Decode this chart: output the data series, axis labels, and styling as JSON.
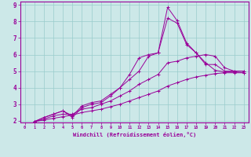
{
  "xlabel": "Windchill (Refroidissement éolien,°C)",
  "ylabel": "",
  "bg_color": "#cce8e8",
  "line_color": "#990099",
  "xlim": [
    -0.5,
    23.5
  ],
  "ylim": [
    1.9,
    9.2
  ],
  "xticks": [
    0,
    1,
    2,
    3,
    4,
    5,
    6,
    7,
    8,
    9,
    10,
    11,
    12,
    13,
    14,
    15,
    16,
    17,
    18,
    19,
    20,
    21,
    22,
    23
  ],
  "yticks": [
    2,
    3,
    4,
    5,
    6,
    7,
    8,
    9
  ],
  "grid_color": "#99cccc",
  "lines": [
    {
      "x": [
        1,
        2,
        3,
        4,
        5,
        6,
        7,
        8,
        9,
        10,
        11,
        12,
        13,
        14,
        15,
        16,
        17,
        18,
        19,
        20,
        21,
        22,
        23
      ],
      "y": [
        1.95,
        2.2,
        2.4,
        2.6,
        2.2,
        2.8,
        3.0,
        3.1,
        3.5,
        4.0,
        4.8,
        5.8,
        6.0,
        6.1,
        8.85,
        8.05,
        6.7,
        6.1,
        5.5,
        5.05,
        4.95,
        4.95,
        4.9
      ]
    },
    {
      "x": [
        1,
        2,
        3,
        4,
        5,
        6,
        7,
        8,
        9,
        10,
        11,
        12,
        13,
        14,
        15,
        16,
        17,
        18,
        19,
        20,
        21,
        22,
        23
      ],
      "y": [
        1.95,
        2.2,
        2.4,
        2.6,
        2.3,
        2.9,
        3.1,
        3.2,
        3.6,
        4.0,
        4.5,
        5.0,
        5.9,
        6.1,
        8.2,
        7.9,
        6.6,
        6.1,
        5.4,
        5.4,
        5.0,
        5.0,
        5.0
      ]
    },
    {
      "x": [
        1,
        2,
        3,
        4,
        5,
        6,
        7,
        8,
        9,
        10,
        11,
        12,
        13,
        14,
        15,
        16,
        17,
        18,
        19,
        20,
        21,
        22,
        23
      ],
      "y": [
        1.95,
        2.1,
        2.3,
        2.4,
        2.4,
        2.7,
        2.8,
        3.0,
        3.2,
        3.5,
        3.8,
        4.2,
        4.5,
        4.8,
        5.5,
        5.6,
        5.8,
        5.9,
        6.0,
        5.9,
        5.2,
        5.0,
        5.0
      ]
    },
    {
      "x": [
        1,
        2,
        3,
        4,
        5,
        6,
        7,
        8,
        9,
        10,
        11,
        12,
        13,
        14,
        15,
        16,
        17,
        18,
        19,
        20,
        21,
        22,
        23
      ],
      "y": [
        1.95,
        2.05,
        2.15,
        2.25,
        2.35,
        2.5,
        2.6,
        2.7,
        2.85,
        3.0,
        3.2,
        3.4,
        3.6,
        3.8,
        4.1,
        4.3,
        4.5,
        4.65,
        4.75,
        4.85,
        4.9,
        4.9,
        4.9
      ]
    }
  ]
}
